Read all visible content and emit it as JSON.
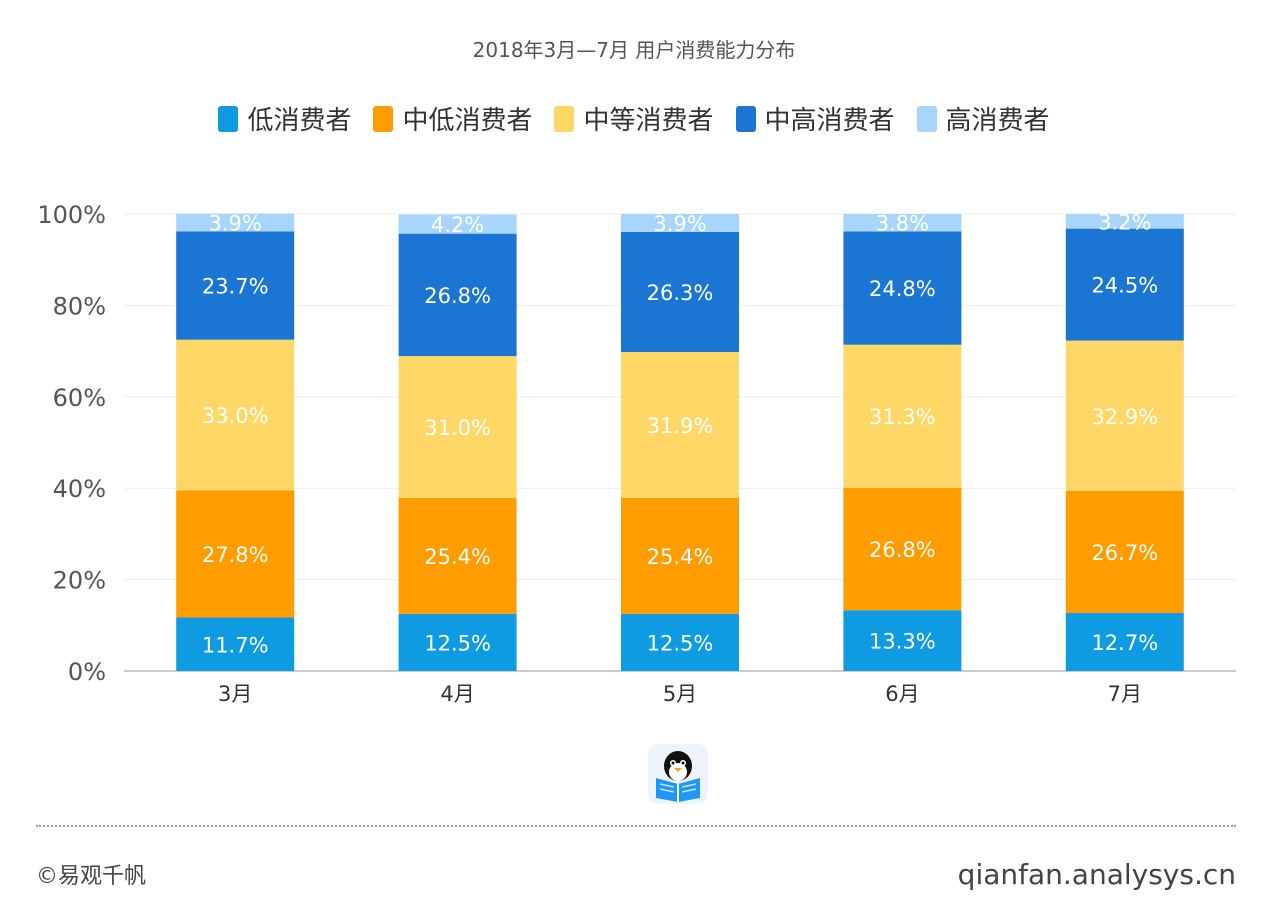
{
  "chart_data": {
    "type": "bar",
    "stacked": true,
    "title": "2018年3月—7月 用户消费能力分布",
    "categories": [
      "3月",
      "4月",
      "5月",
      "6月",
      "7月"
    ],
    "series": [
      {
        "name": "低消费者",
        "color": "#0e9be2",
        "values": [
          11.7,
          12.5,
          12.5,
          13.3,
          12.7
        ]
      },
      {
        "name": "中低消费者",
        "color": "#ff9c00",
        "values": [
          27.8,
          25.4,
          25.4,
          26.8,
          26.7
        ]
      },
      {
        "name": "中等消费者",
        "color": "#fed766",
        "values": [
          33.0,
          31.0,
          31.9,
          31.3,
          32.9
        ]
      },
      {
        "name": "中高消费者",
        "color": "#1b75d3",
        "values": [
          23.7,
          26.8,
          26.3,
          24.8,
          24.5
        ]
      },
      {
        "name": "高消费者",
        "color": "#a8d5fa",
        "values": [
          3.9,
          4.2,
          3.9,
          3.8,
          3.2
        ]
      }
    ],
    "value_suffix": "%",
    "ylim": [
      0,
      100
    ],
    "yticks": [
      "0%",
      "20%",
      "40%",
      "60%",
      "80%",
      "100%"
    ],
    "legend_position": "top-center",
    "grid": true
  },
  "footer": {
    "credit": "©易观千帆",
    "site": "qianfan.analysys.cn"
  },
  "logo_icon": "qq-penguin-reading-icon"
}
